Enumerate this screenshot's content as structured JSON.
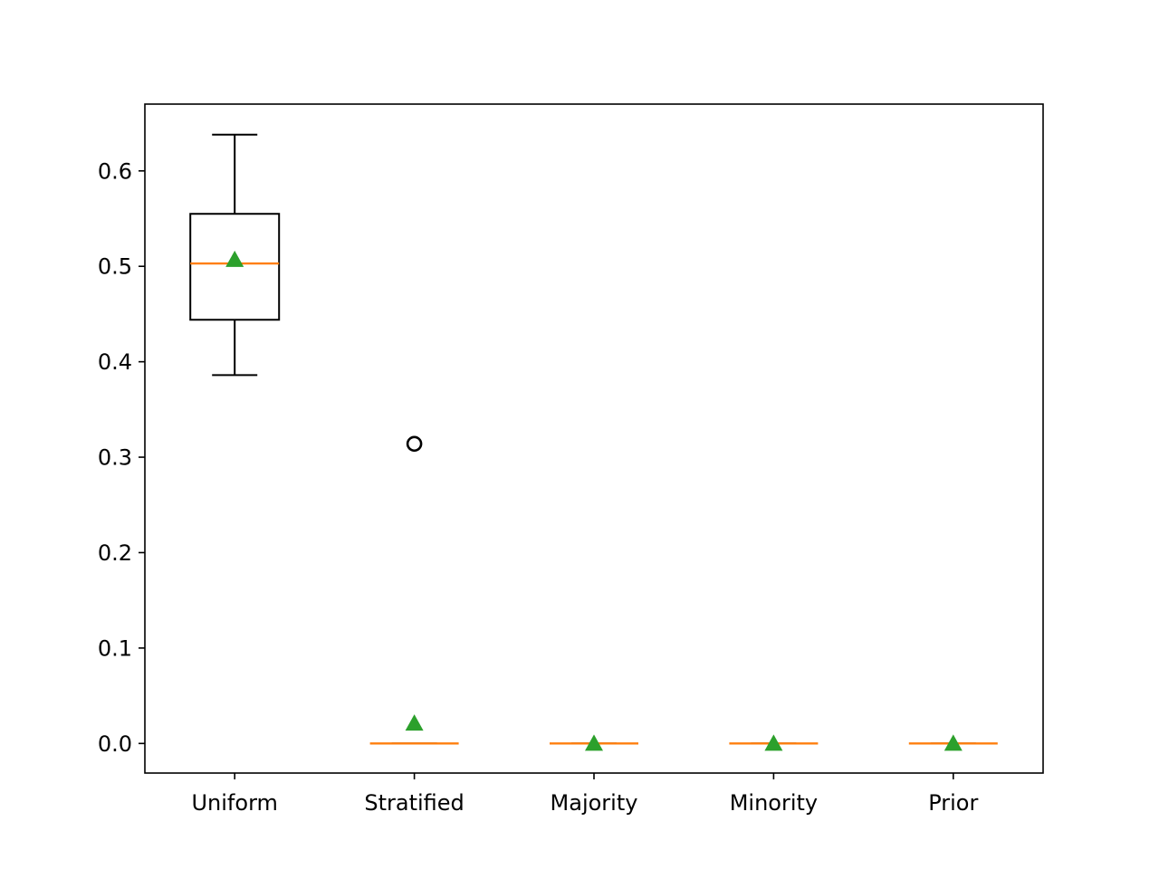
{
  "chart_data": {
    "type": "box",
    "title": "",
    "xlabel": "",
    "ylabel": "",
    "categories": [
      "Uniform",
      "Stratified",
      "Majority",
      "Minority",
      "Prior"
    ],
    "ylim": [
      -0.031,
      0.67
    ],
    "yticks": [
      0.0,
      0.1,
      0.2,
      0.3,
      0.4,
      0.5,
      0.6
    ],
    "ytick_labels": [
      "0.0",
      "0.1",
      "0.2",
      "0.3",
      "0.4",
      "0.5",
      "0.6"
    ],
    "grid": false,
    "legend": "none",
    "boxes": [
      {
        "label": "Uniform",
        "whisker_low": 0.386,
        "q1": 0.444,
        "median": 0.503,
        "q3": 0.555,
        "whisker_high": 0.638,
        "mean": 0.507,
        "outliers": []
      },
      {
        "label": "Stratified",
        "whisker_low": 0.0,
        "q1": 0.0,
        "median": 0.0,
        "q3": 0.0,
        "whisker_high": 0.0,
        "mean": 0.021,
        "outliers": [
          0.314
        ]
      },
      {
        "label": "Majority",
        "whisker_low": 0.0,
        "q1": 0.0,
        "median": 0.0,
        "q3": 0.0,
        "whisker_high": 0.0,
        "mean": 0.0,
        "outliers": []
      },
      {
        "label": "Minority",
        "whisker_low": 0.0,
        "q1": 0.0,
        "median": 0.0,
        "q3": 0.0,
        "whisker_high": 0.0,
        "mean": 0.0,
        "outliers": []
      },
      {
        "label": "Prior",
        "whisker_low": 0.0,
        "q1": 0.0,
        "median": 0.0,
        "q3": 0.0,
        "whisker_high": 0.0,
        "mean": 0.0,
        "outliers": []
      }
    ],
    "colors": {
      "box": "#000000",
      "median": "#ff7f0e",
      "mean": "#2ca02c",
      "outlier": "#000000"
    }
  }
}
